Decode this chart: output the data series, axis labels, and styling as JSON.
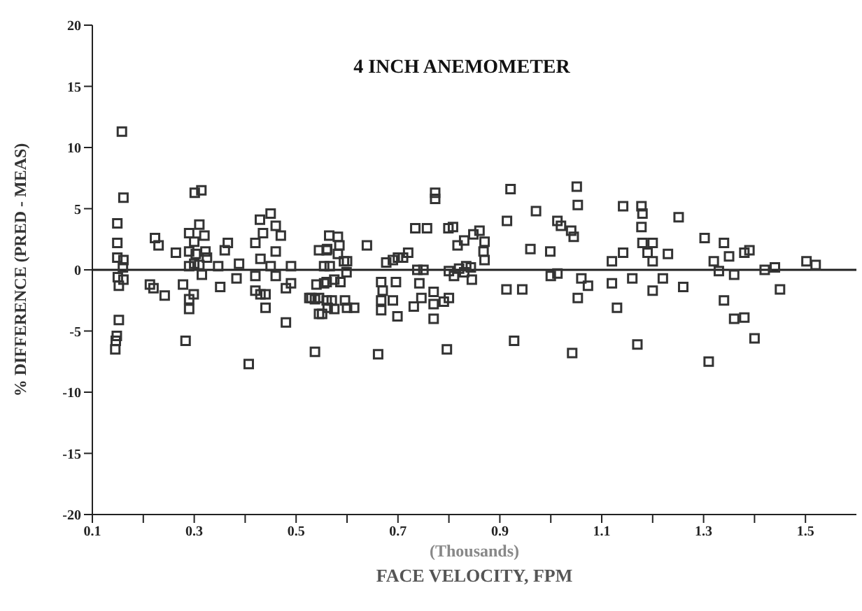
{
  "chart_data": {
    "type": "scatter",
    "title": "4 INCH ANEMOMETER",
    "xlabel": "FACE VELOCITY,  FPM",
    "ylabel": "% DIFFERENCE  (PRED - MEAS)",
    "annotations": [
      "(Thousands)"
    ],
    "marker": "square",
    "grid": false,
    "xlim": [
      0.1,
      1.6
    ],
    "ylim": [
      -20,
      20
    ],
    "xticks": [
      0.1,
      {
        "value": 0.2,
        "label": null
      },
      0.3,
      {
        "value": 0.4,
        "label": null
      },
      0.5,
      {
        "value": 0.6,
        "label": null
      },
      0.7,
      {
        "value": 0.8,
        "label": null
      },
      0.9,
      {
        "value": 1.0,
        "label": null
      },
      1.1,
      {
        "value": 1.2,
        "label": null
      },
      1.3,
      {
        "value": 1.4,
        "label": null
      },
      1.5
    ],
    "yticks": [
      -20,
      -15,
      -10,
      -5,
      0,
      5,
      10,
      15,
      20
    ],
    "ref_lines": [
      {
        "axis": "y",
        "value": 0,
        "color": "#222222"
      }
    ],
    "series": [
      {
        "color": "#333333",
        "x": [
          0.158,
          0.161,
          0.149,
          0.149,
          0.149,
          0.161,
          0.16,
          0.15,
          0.161,
          0.152,
          0.152,
          0.148,
          0.146,
          0.145,
          0.223,
          0.23,
          0.264,
          0.213,
          0.22,
          0.242,
          0.278,
          0.283,
          0.29,
          0.29,
          0.299,
          0.301,
          0.314,
          0.29,
          0.3,
          0.31,
          0.32,
          0.29,
          0.303,
          0.322,
          0.325,
          0.29,
          0.3,
          0.31,
          0.315,
          0.347,
          0.366,
          0.36,
          0.351,
          0.388,
          0.383,
          0.407,
          0.429,
          0.45,
          0.46,
          0.435,
          0.47,
          0.42,
          0.46,
          0.43,
          0.45,
          0.42,
          0.46,
          0.42,
          0.43,
          0.44,
          0.44,
          0.48,
          0.48,
          0.49,
          0.49,
          0.526,
          0.537,
          0.54,
          0.545,
          0.545,
          0.545,
          0.56,
          0.565,
          0.555,
          0.555,
          0.56,
          0.562,
          0.537,
          0.561,
          0.582,
          0.585,
          0.582,
          0.566,
          0.594,
          0.6,
          0.599,
          0.56,
          0.575,
          0.587,
          0.53,
          0.551,
          0.575,
          0.6,
          0.614,
          0.57,
          0.596,
          0.639,
          0.661,
          0.667,
          0.696,
          0.67,
          0.667,
          0.69,
          0.667,
          0.699,
          0.731,
          0.677,
          0.69,
          0.7,
          0.71,
          0.72,
          0.734,
          0.757,
          0.738,
          0.75,
          0.742,
          0.746,
          0.77,
          0.77,
          0.79,
          0.8,
          0.77,
          0.796,
          0.773,
          0.773,
          0.799,
          0.808,
          0.817,
          0.83,
          0.848,
          0.86,
          0.87,
          0.868,
          0.87,
          0.8,
          0.81,
          0.82,
          0.834,
          0.843,
          0.845,
          0.83,
          0.913,
          0.944,
          0.928,
          0.921,
          0.914,
          0.971,
          0.96,
          0.999,
          1.013,
          1.02,
          1.04,
          1.045,
          1.0,
          1.013,
          1.051,
          1.053,
          1.042,
          1.053,
          1.06,
          1.073,
          1.142,
          1.178,
          1.18,
          1.178,
          1.251,
          1.18,
          1.2,
          1.19,
          1.2,
          1.142,
          1.12,
          1.23,
          1.302,
          1.34,
          1.35,
          1.38,
          1.39,
          1.32,
          1.33,
          1.36,
          1.42,
          1.44,
          1.502,
          1.52,
          1.12,
          1.16,
          1.22,
          1.2,
          1.26,
          1.13,
          1.34,
          1.36,
          1.38,
          1.4,
          1.45,
          1.17,
          1.31
        ],
        "values": [
          11.3,
          5.9,
          3.8,
          2.2,
          1.0,
          0.8,
          0.2,
          -0.6,
          -0.8,
          -1.3,
          -4.1,
          -5.4,
          -5.8,
          -6.5,
          2.6,
          2.0,
          1.4,
          -1.2,
          -1.5,
          -2.1,
          -1.2,
          -5.8,
          -2.4,
          -3.2,
          -2.0,
          6.3,
          6.5,
          3.0,
          2.3,
          3.7,
          2.8,
          1.5,
          1.3,
          1.5,
          1.0,
          0.3,
          0.5,
          0.4,
          -0.4,
          0.3,
          2.2,
          1.6,
          -1.4,
          0.5,
          -0.7,
          -7.7,
          4.1,
          4.6,
          3.6,
          3.0,
          2.8,
          2.2,
          1.5,
          0.9,
          0.3,
          -0.5,
          -0.5,
          -1.7,
          -2.0,
          -2.0,
          -3.1,
          -4.3,
          -1.5,
          0.3,
          -1.1,
          -2.3,
          -6.7,
          -1.2,
          -2.3,
          -3.6,
          1.6,
          1.6,
          2.8,
          0.3,
          -1.1,
          -2.5,
          -3.1,
          -2.4,
          1.7,
          2.7,
          2.0,
          1.3,
          0.3,
          0.7,
          0.7,
          -0.2,
          -1.0,
          -0.8,
          -1.0,
          -2.3,
          -3.6,
          -3.2,
          -3.1,
          -3.1,
          -2.5,
          -2.5,
          2.0,
          -6.9,
          -1.0,
          -1.0,
          -1.7,
          -2.5,
          -2.5,
          -3.3,
          -3.8,
          -3.0,
          0.6,
          0.8,
          1.0,
          1.0,
          1.4,
          3.4,
          3.4,
          0.0,
          0.0,
          -1.1,
          -2.3,
          -1.8,
          -2.8,
          -2.6,
          -2.3,
          -4.0,
          -6.5,
          6.3,
          5.8,
          3.4,
          3.5,
          2.0,
          2.4,
          2.9,
          3.2,
          2.3,
          1.5,
          0.8,
          -0.1,
          -0.5,
          0.1,
          0.3,
          0.2,
          -0.8,
          -0.2,
          -1.6,
          -1.6,
          -5.8,
          6.6,
          4.0,
          4.8,
          1.7,
          1.5,
          4.0,
          3.6,
          3.2,
          2.7,
          -0.5,
          -0.3,
          6.8,
          5.3,
          -6.8,
          -2.3,
          -0.7,
          -1.3,
          5.2,
          5.2,
          4.6,
          3.5,
          4.3,
          2.2,
          2.2,
          1.4,
          0.7,
          1.4,
          0.7,
          1.3,
          2.6,
          2.2,
          1.1,
          1.4,
          1.6,
          0.7,
          -0.1,
          -0.4,
          0.0,
          0.2,
          0.7,
          0.4,
          -1.1,
          -0.7,
          -0.7,
          -1.7,
          -1.4,
          -3.1,
          -2.5,
          -4.0,
          -3.9,
          -5.6,
          -1.6,
          -6.1,
          -7.5
        ]
      }
    ]
  }
}
